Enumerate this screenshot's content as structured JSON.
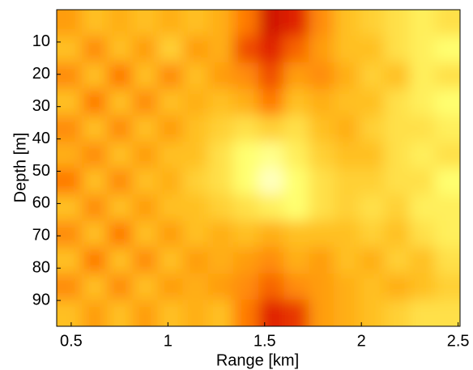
{
  "chart_data": {
    "type": "heatmap",
    "xlabel": "Range [km]",
    "ylabel": "Depth [m]",
    "xlim": [
      0.425,
      2.51
    ],
    "ylim": [
      0,
      98
    ],
    "y_reversed": true,
    "xticks": [
      0.5,
      1,
      1.5,
      2,
      2.5
    ],
    "yticks": [
      10,
      20,
      30,
      40,
      50,
      60,
      70,
      80,
      90
    ],
    "zlim": [
      0,
      1
    ],
    "colormap": [
      "#a00000",
      "#e02000",
      "#ff7a00",
      "#ffc020",
      "#ffff70",
      "#ffffd8"
    ],
    "z": [
      [
        0.5,
        0.6,
        0.55,
        0.6,
        0.55,
        0.6,
        0.55,
        0.4,
        0.15,
        0.2,
        0.45,
        0.6,
        0.65,
        0.7,
        0.75,
        0.7
      ],
      [
        0.6,
        0.45,
        0.6,
        0.5,
        0.65,
        0.5,
        0.55,
        0.3,
        0.2,
        0.35,
        0.5,
        0.6,
        0.6,
        0.7,
        0.75,
        0.8
      ],
      [
        0.45,
        0.6,
        0.4,
        0.6,
        0.45,
        0.6,
        0.5,
        0.45,
        0.3,
        0.5,
        0.45,
        0.55,
        0.65,
        0.6,
        0.75,
        0.7
      ],
      [
        0.6,
        0.4,
        0.6,
        0.45,
        0.6,
        0.55,
        0.6,
        0.55,
        0.4,
        0.6,
        0.55,
        0.6,
        0.6,
        0.7,
        0.75,
        0.8
      ],
      [
        0.45,
        0.6,
        0.45,
        0.6,
        0.5,
        0.6,
        0.65,
        0.7,
        0.65,
        0.7,
        0.6,
        0.55,
        0.65,
        0.7,
        0.7,
        0.75
      ],
      [
        0.55,
        0.45,
        0.6,
        0.5,
        0.6,
        0.6,
        0.7,
        0.8,
        0.85,
        0.75,
        0.65,
        0.6,
        0.6,
        0.7,
        0.75,
        0.7
      ],
      [
        0.4,
        0.6,
        0.45,
        0.6,
        0.55,
        0.65,
        0.7,
        0.8,
        0.95,
        0.8,
        0.7,
        0.65,
        0.65,
        0.7,
        0.7,
        0.8
      ],
      [
        0.6,
        0.45,
        0.6,
        0.5,
        0.6,
        0.6,
        0.65,
        0.7,
        0.75,
        0.8,
        0.7,
        0.65,
        0.7,
        0.65,
        0.75,
        0.75
      ],
      [
        0.45,
        0.6,
        0.4,
        0.6,
        0.5,
        0.6,
        0.55,
        0.6,
        0.55,
        0.6,
        0.6,
        0.6,
        0.65,
        0.6,
        0.7,
        0.75
      ],
      [
        0.6,
        0.4,
        0.6,
        0.45,
        0.6,
        0.5,
        0.55,
        0.5,
        0.45,
        0.55,
        0.5,
        0.6,
        0.55,
        0.65,
        0.6,
        0.7
      ],
      [
        0.45,
        0.6,
        0.45,
        0.6,
        0.5,
        0.55,
        0.5,
        0.45,
        0.35,
        0.45,
        0.5,
        0.55,
        0.6,
        0.55,
        0.6,
        0.65
      ],
      [
        0.6,
        0.5,
        0.6,
        0.5,
        0.6,
        0.55,
        0.6,
        0.4,
        0.2,
        0.25,
        0.5,
        0.55,
        0.6,
        0.65,
        0.7,
        0.7
      ]
    ]
  }
}
